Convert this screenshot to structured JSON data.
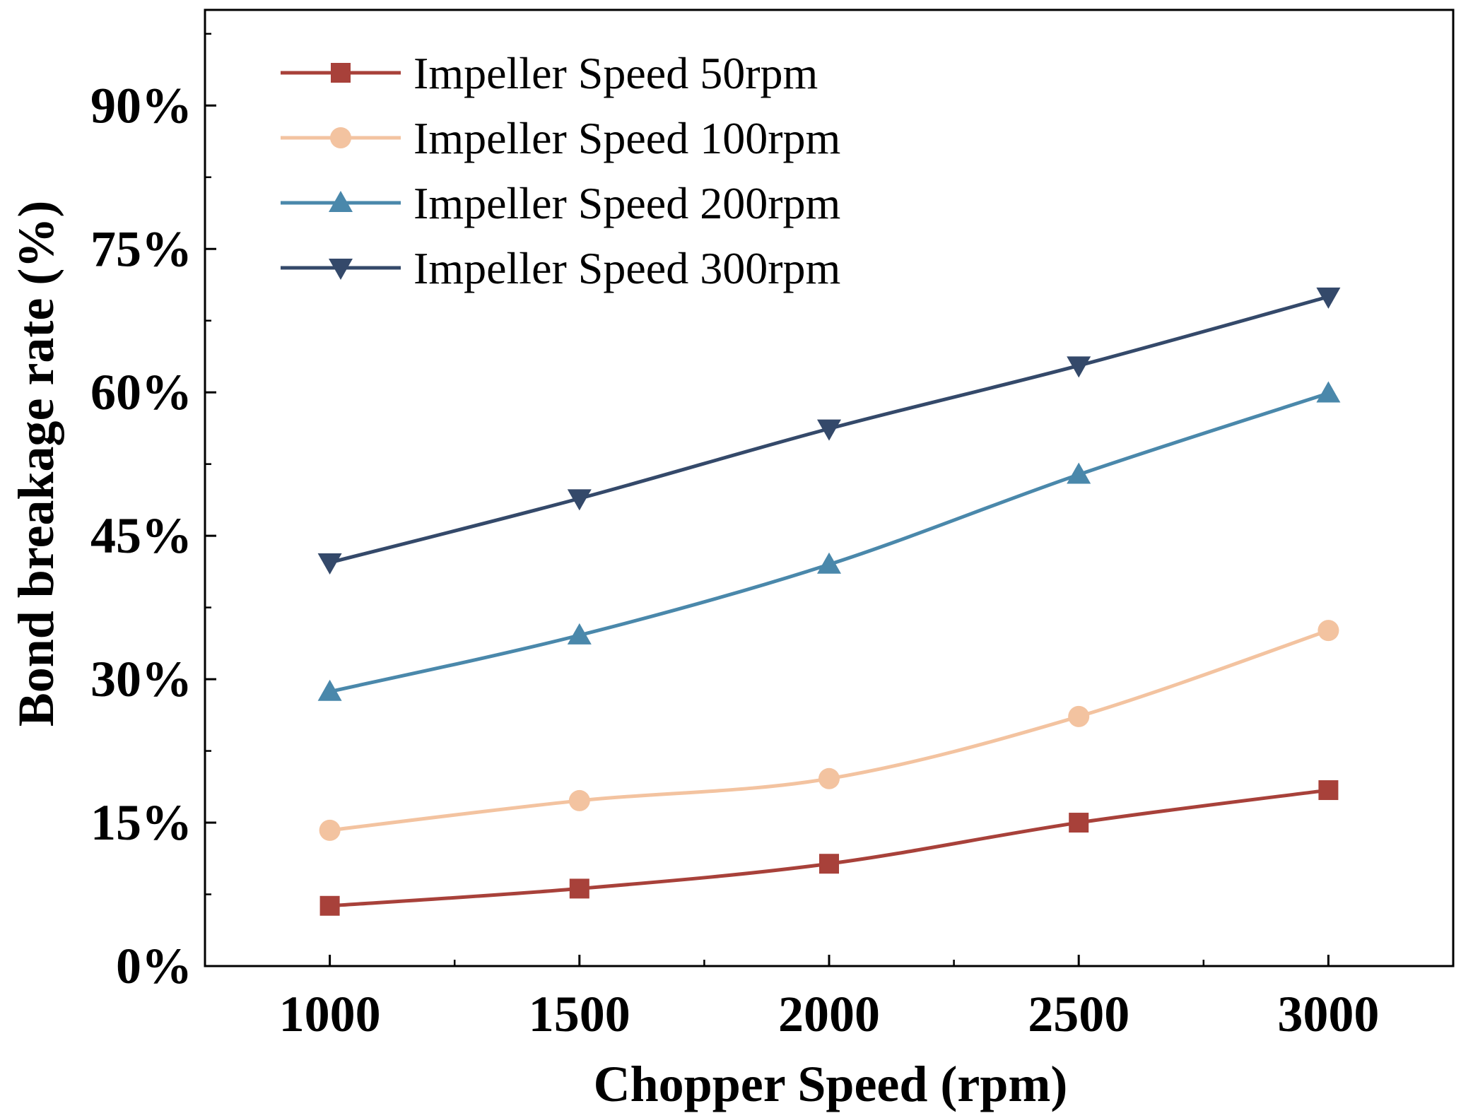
{
  "chart_data": {
    "type": "line",
    "title": "",
    "xlabel": "Chopper Speed (rpm)",
    "ylabel": "Bond breakage rate (%)",
    "x": [
      1000,
      1500,
      2000,
      2500,
      3000
    ],
    "xticks": [
      1000,
      1500,
      2000,
      2500,
      3000
    ],
    "xlim": [
      750,
      3250
    ],
    "yticks": [
      0,
      15,
      30,
      45,
      60,
      75,
      90
    ],
    "ytick_labels": [
      "0%",
      "15%",
      "30%",
      "45%",
      "60%",
      "75%",
      "90%"
    ],
    "ylim": [
      0,
      100
    ],
    "grid": false,
    "legend_position": "top-left",
    "series": [
      {
        "name": "Impeller Speed 50rpm",
        "marker": "square",
        "color": "#a8413a",
        "values": [
          6.3,
          8.1,
          10.7,
          15.0,
          18.4
        ]
      },
      {
        "name": "Impeller Speed 100rpm",
        "marker": "circle",
        "color": "#f3c3a0",
        "values": [
          14.2,
          17.3,
          19.6,
          26.1,
          35.1
        ]
      },
      {
        "name": "Impeller Speed 200rpm",
        "marker": "triangle-up",
        "color": "#4a88ab",
        "values": [
          28.7,
          34.6,
          42.0,
          51.4,
          59.9
        ]
      },
      {
        "name": "Impeller Speed 300rpm",
        "marker": "triangle-down",
        "color": "#34496a",
        "values": [
          42.2,
          48.9,
          56.2,
          62.8,
          70.0
        ]
      }
    ]
  }
}
